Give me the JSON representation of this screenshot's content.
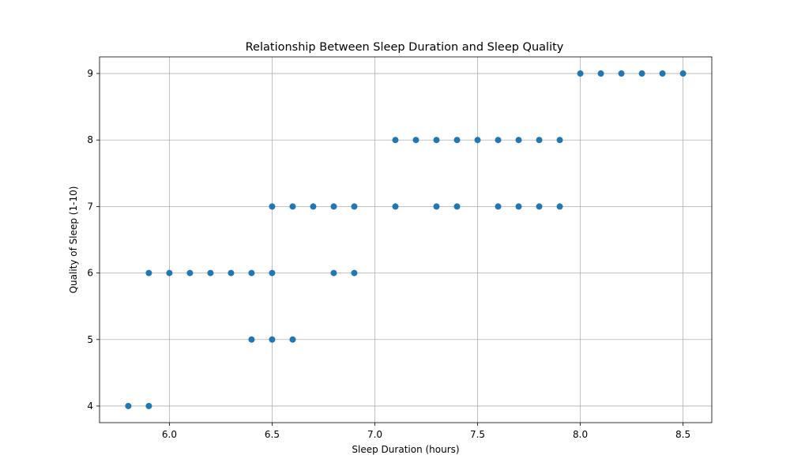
{
  "chart_data": {
    "type": "scatter",
    "title": "Relationship Between Sleep Duration and Sleep Quality",
    "xlabel": "Sleep Duration (hours)",
    "ylabel": "Quality of Sleep (1-10)",
    "xlim": [
      5.66,
      8.64
    ],
    "ylim": [
      3.75,
      9.25
    ],
    "xticks": [
      "6.0",
      "6.5",
      "7.0",
      "7.5",
      "8.0",
      "8.5"
    ],
    "yticks": [
      "4",
      "5",
      "6",
      "7",
      "8",
      "9"
    ],
    "grid": true,
    "color": "#1f77b4",
    "points": [
      {
        "x": 5.8,
        "y": 4
      },
      {
        "x": 5.9,
        "y": 4
      },
      {
        "x": 6.4,
        "y": 5
      },
      {
        "x": 6.5,
        "y": 5
      },
      {
        "x": 6.6,
        "y": 5
      },
      {
        "x": 5.9,
        "y": 6
      },
      {
        "x": 6.0,
        "y": 6
      },
      {
        "x": 6.1,
        "y": 6
      },
      {
        "x": 6.2,
        "y": 6
      },
      {
        "x": 6.3,
        "y": 6
      },
      {
        "x": 6.4,
        "y": 6
      },
      {
        "x": 6.5,
        "y": 6
      },
      {
        "x": 6.8,
        "y": 6
      },
      {
        "x": 6.9,
        "y": 6
      },
      {
        "x": 6.5,
        "y": 7
      },
      {
        "x": 6.6,
        "y": 7
      },
      {
        "x": 6.7,
        "y": 7
      },
      {
        "x": 6.8,
        "y": 7
      },
      {
        "x": 6.9,
        "y": 7
      },
      {
        "x": 7.1,
        "y": 7
      },
      {
        "x": 7.3,
        "y": 7
      },
      {
        "x": 7.4,
        "y": 7
      },
      {
        "x": 7.6,
        "y": 7
      },
      {
        "x": 7.7,
        "y": 7
      },
      {
        "x": 7.8,
        "y": 7
      },
      {
        "x": 7.9,
        "y": 7
      },
      {
        "x": 7.1,
        "y": 8
      },
      {
        "x": 7.2,
        "y": 8
      },
      {
        "x": 7.3,
        "y": 8
      },
      {
        "x": 7.4,
        "y": 8
      },
      {
        "x": 7.5,
        "y": 8
      },
      {
        "x": 7.6,
        "y": 8
      },
      {
        "x": 7.7,
        "y": 8
      },
      {
        "x": 7.8,
        "y": 8
      },
      {
        "x": 7.9,
        "y": 8
      },
      {
        "x": 8.0,
        "y": 9
      },
      {
        "x": 8.1,
        "y": 9
      },
      {
        "x": 8.2,
        "y": 9
      },
      {
        "x": 8.3,
        "y": 9
      },
      {
        "x": 8.4,
        "y": 9
      },
      {
        "x": 8.5,
        "y": 9
      }
    ]
  }
}
